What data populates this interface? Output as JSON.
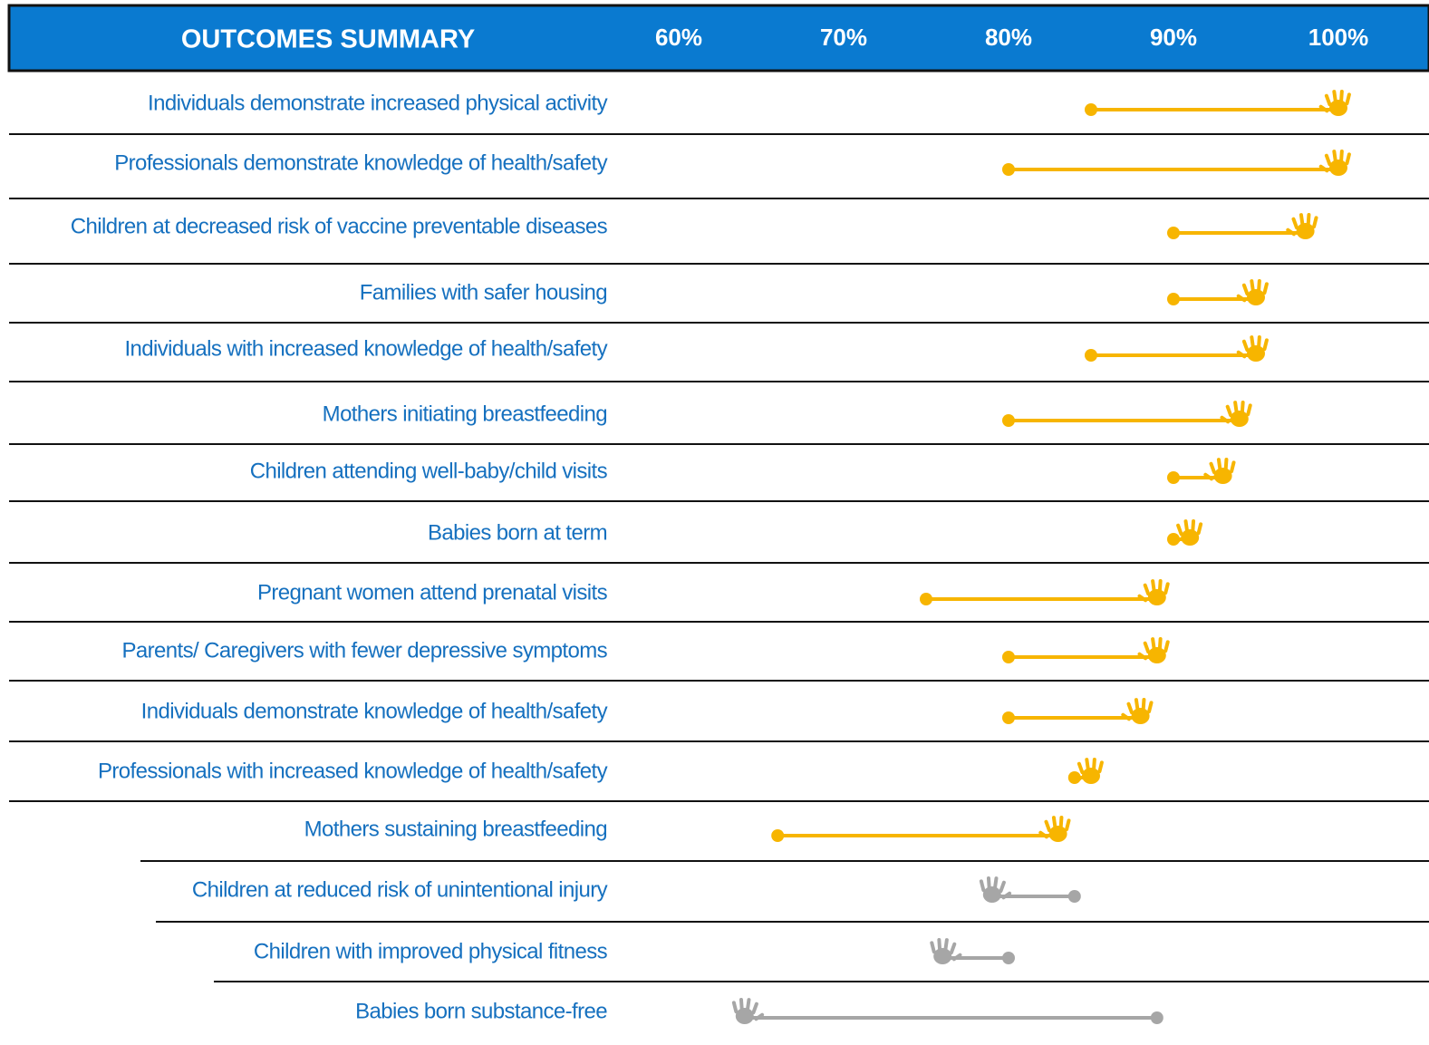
{
  "chart_data": {
    "type": "dumbbell",
    "title": "OUTCOMES SUMMARY",
    "categories": [
      "Individuals demonstrate increased physical activity",
      "Professionals demonstrate knowledge of health/safety",
      "Children at decreased risk of vaccine preventable diseases",
      "Families with safer housing",
      "Individuals with increased knowledge of health/safety",
      "Mothers initiating breastfeeding",
      "Children attending well-baby/child visits",
      "Babies born at term",
      "Pregnant women attend prenatal visits",
      "Parents/ Caregivers with fewer depressive symptoms",
      "Individuals demonstrate knowledge of health/safety",
      "Professionals with increased knowledge of health/safety",
      "Mothers sustaining breastfeeding",
      "Children at reduced risk of unintentional injury",
      "Children with improved physical fitness",
      "Babies born substance-free"
    ],
    "start_values": [
      85,
      80,
      90,
      90,
      85,
      80,
      90,
      90,
      75,
      80,
      80,
      84,
      66,
      84,
      80,
      89
    ],
    "end_values": [
      100,
      100,
      98,
      95,
      95,
      94,
      93,
      91,
      89,
      89,
      88,
      85,
      83,
      79,
      76,
      64
    ],
    "colors": [
      "#f7b500",
      "#f7b500",
      "#f7b500",
      "#f7b500",
      "#f7b500",
      "#f7b500",
      "#f7b500",
      "#f7b500",
      "#f7b500",
      "#f7b500",
      "#f7b500",
      "#f7b500",
      "#f7b500",
      "#a6a6a6",
      "#a6a6a6",
      "#a6a6a6"
    ],
    "xlim": [
      55,
      105
    ],
    "xticks": [
      {
        "value": 60,
        "label": "60%"
      },
      {
        "value": 70,
        "label": "70%"
      },
      {
        "value": 80,
        "label": "80%"
      },
      {
        "value": 90,
        "label": "90%"
      },
      {
        "value": 100,
        "label": "100%"
      }
    ]
  }
}
